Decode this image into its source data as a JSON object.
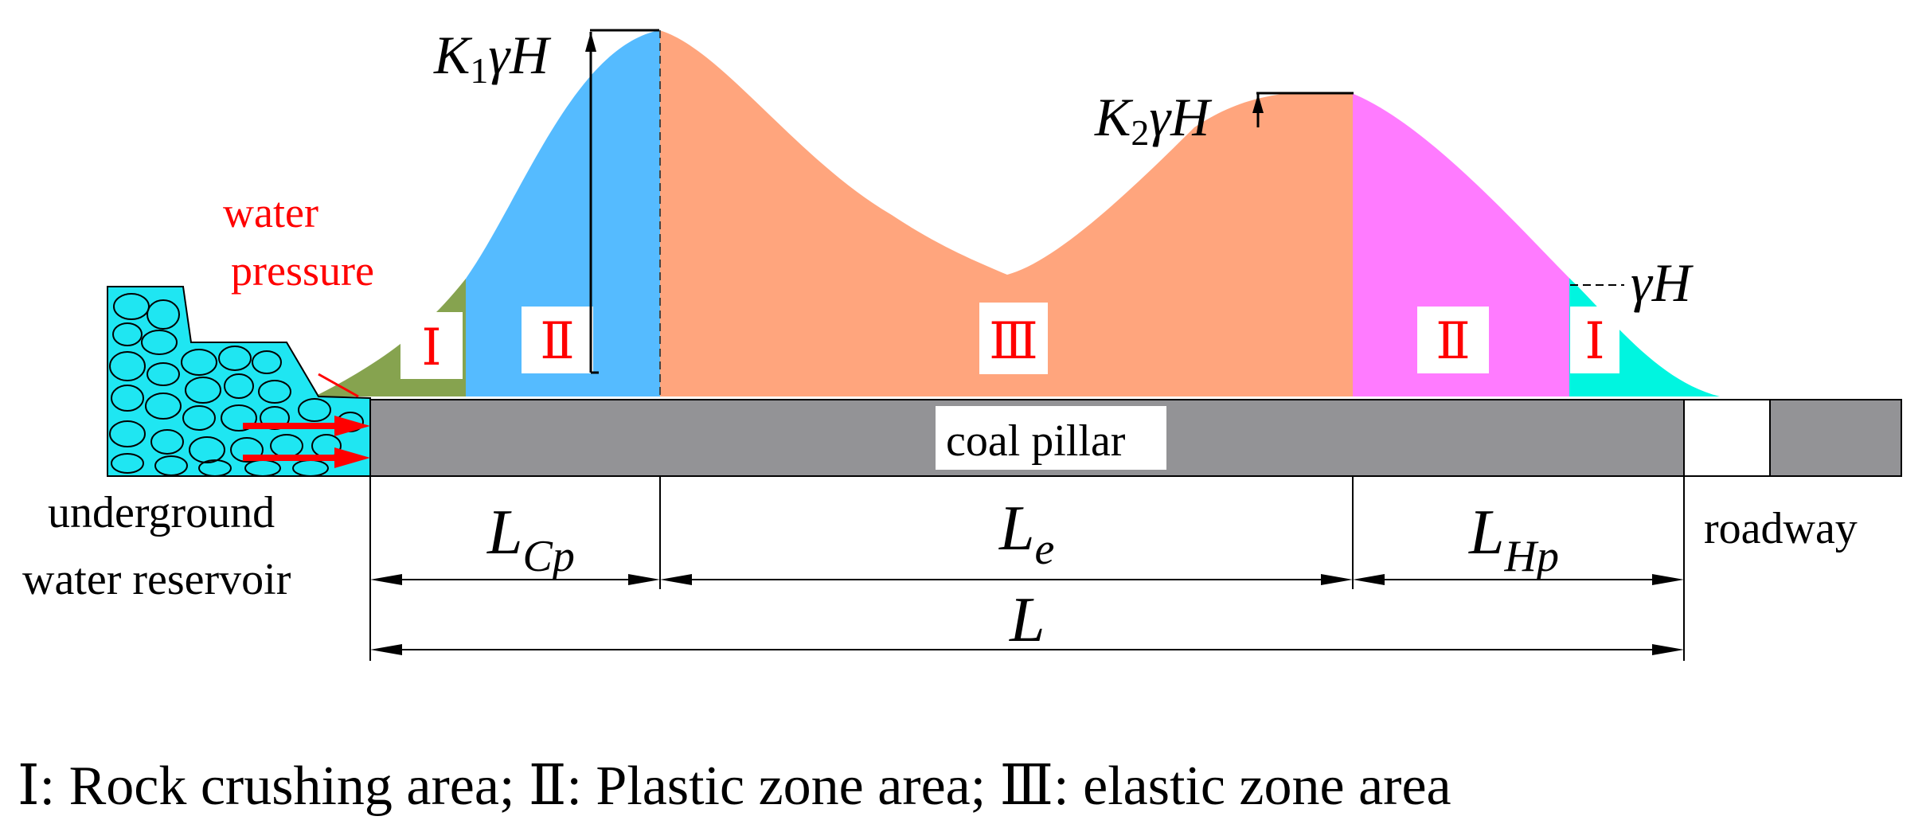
{
  "colors": {
    "crushing": "#86A34F",
    "plastic_left": "#55BBFF",
    "elastic": "#FFA57D",
    "plastic_right": "#FF7BFF",
    "crushing_right": "#00F5E0",
    "pillar": "#939396",
    "water": "#1FE6F2",
    "arrow": "#FF0000",
    "label_red": "#FF0000"
  },
  "labels": {
    "k1": "K",
    "k1_sub": "1",
    "k1_rest": "γH",
    "k2": "K",
    "k2_sub": "2",
    "k2_rest": "γH",
    "gamma_h": "γH",
    "water_line1": "water",
    "water_line2": "pressure",
    "coal_pillar": "coal pillar",
    "roadway": "roadway",
    "reservoir_line1": "underground",
    "reservoir_line2": "water reservoir",
    "zone_I": "Ⅰ",
    "zone_II": "Ⅱ",
    "zone_III": "Ⅲ",
    "lcp_main": "L",
    "lcp_sub": "Cp",
    "le_main": "L",
    "le_sub": "e",
    "lhp_main": "L",
    "lhp_sub": "Hp",
    "l_total": "L"
  },
  "legend": "Ⅰ: Rock crushing area; Ⅱ: Plastic zone area; Ⅲ: elastic zone area",
  "icons": {
    "water_arrows": "right-arrow-icon",
    "dimension_arrows": "double-arrow-icon"
  }
}
